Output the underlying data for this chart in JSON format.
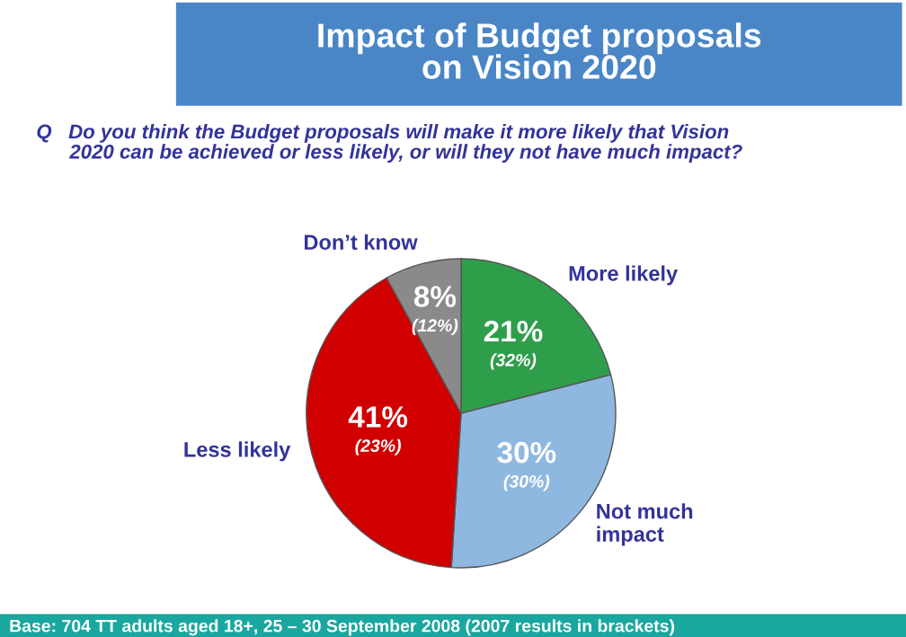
{
  "chart_data": {
    "type": "pie",
    "title": "Impact of Budget proposals\non Vision 2020",
    "subtitle": "Q   Do you think the Budget proposals will make it more likely that Vision\n      2020 can be achieved or less likely, or will they not have much impact?",
    "categories": [
      "More likely",
      "Not much\nimpact",
      "Less likely",
      "Don’t know"
    ],
    "values": [
      21,
      30,
      41,
      8
    ],
    "colors": [
      "#2e9e4a",
      "#8fb8e0",
      "#d00000",
      "#8a8a8a"
    ],
    "value_labels": [
      "21%\n(32%)",
      "30%\n(30%)",
      "41%\n(23%)",
      "8%\n(12%)"
    ],
    "annotations": [
      "Base: 704 TT adults aged 18+, 25 – 30 September 2008 (2007 results in brackets)"
    ]
  }
}
